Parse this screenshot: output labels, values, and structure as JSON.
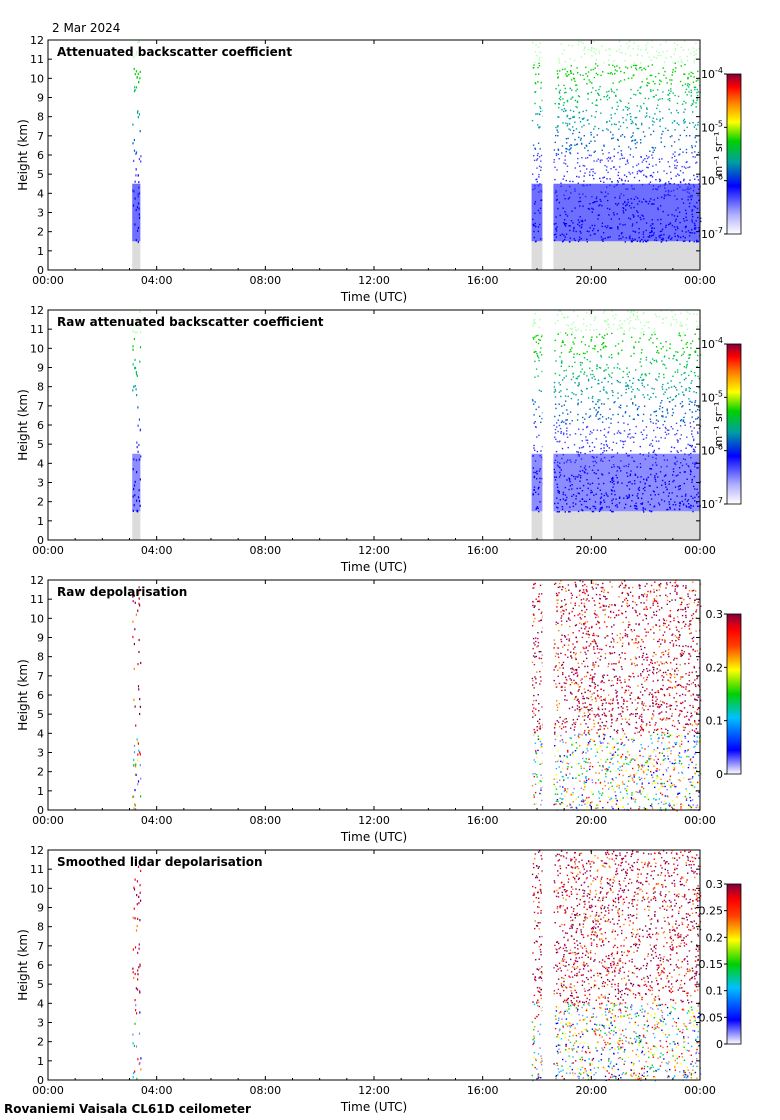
{
  "date_label": "2 Mar 2024",
  "footer": "Rovaniemi Vaisala CL61D ceilometer",
  "colors": {
    "nodata": "#dcdcdc",
    "axis": "#000000"
  },
  "chart_data": [
    {
      "type": "heatmap",
      "title": "Attenuated backscatter coefficient",
      "xlabel": "Time (UTC)",
      "ylabel": "Height (km)",
      "xlim": [
        0,
        24
      ],
      "ylim": [
        0,
        12
      ],
      "xticks": [
        "00:00",
        "04:00",
        "08:00",
        "12:00",
        "16:00",
        "20:00",
        "00:00"
      ],
      "yticks": [
        "0",
        "1",
        "2",
        "3",
        "4",
        "5",
        "6",
        "7",
        "8",
        "9",
        "10",
        "11",
        "12"
      ],
      "colorbar": {
        "scale": "log",
        "ticks": [
          {
            "base": "10",
            "exp": "-4"
          },
          {
            "base": "10",
            "exp": "-5"
          },
          {
            "base": "10",
            "exp": "-6"
          },
          {
            "base": "10",
            "exp": "-7"
          }
        ],
        "unit": "m⁻¹ sr⁻¹",
        "colormap": "viridis-like"
      },
      "data_segments": [
        [
          3.1,
          3.4
        ],
        [
          17.8,
          18.2
        ],
        [
          18.6,
          24
        ]
      ],
      "gap": [
        18.2,
        18.6
      ]
    },
    {
      "type": "heatmap",
      "title": "Raw attenuated backscatter coefficient",
      "xlabel": "Time (UTC)",
      "ylabel": "Height (km)",
      "xlim": [
        0,
        24
      ],
      "ylim": [
        0,
        12
      ],
      "xticks": [
        "00:00",
        "04:00",
        "08:00",
        "12:00",
        "16:00",
        "20:00",
        "00:00"
      ],
      "yticks": [
        "0",
        "1",
        "2",
        "3",
        "4",
        "5",
        "6",
        "7",
        "8",
        "9",
        "10",
        "11",
        "12"
      ],
      "colorbar": {
        "scale": "log",
        "ticks": [
          {
            "base": "10",
            "exp": "-4"
          },
          {
            "base": "10",
            "exp": "-5"
          },
          {
            "base": "10",
            "exp": "-6"
          },
          {
            "base": "10",
            "exp": "-7"
          }
        ],
        "unit": "m⁻¹ sr⁻¹",
        "colormap": "viridis-like"
      },
      "data_segments": [
        [
          3.1,
          3.4
        ],
        [
          17.8,
          18.2
        ],
        [
          18.6,
          24
        ]
      ],
      "gap": [
        18.2,
        18.6
      ]
    },
    {
      "type": "heatmap",
      "title": "Raw depolarisation",
      "xlabel": "Time (UTC)",
      "ylabel": "Height (km)",
      "xlim": [
        0,
        24
      ],
      "ylim": [
        0,
        12
      ],
      "xticks": [
        "00:00",
        "04:00",
        "08:00",
        "12:00",
        "16:00",
        "20:00",
        "00:00"
      ],
      "yticks": [
        "0",
        "1",
        "2",
        "3",
        "4",
        "5",
        "6",
        "7",
        "8",
        "9",
        "10",
        "11",
        "12"
      ],
      "colorbar": {
        "scale": "linear",
        "ticks": [
          "0.3",
          "0.2",
          "0.1",
          "0"
        ],
        "range": [
          0,
          0.3
        ],
        "colormap": "rainbow"
      },
      "data_segments": [
        [
          3.1,
          3.4
        ],
        [
          17.8,
          18.2
        ],
        [
          18.6,
          24
        ]
      ],
      "gap": [
        18.2,
        18.6
      ]
    },
    {
      "type": "heatmap",
      "title": "Smoothed lidar depolarisation",
      "xlabel": "Time (UTC)",
      "ylabel": "Height (km)",
      "xlim": [
        0,
        24
      ],
      "ylim": [
        0,
        12
      ],
      "xticks": [
        "00:00",
        "04:00",
        "08:00",
        "12:00",
        "16:00",
        "20:00",
        "00:00"
      ],
      "yticks": [
        "0",
        "1",
        "2",
        "3",
        "4",
        "5",
        "6",
        "7",
        "8",
        "9",
        "10",
        "11",
        "12"
      ],
      "colorbar": {
        "scale": "linear",
        "ticks": [
          "0.3",
          "0.25",
          "0.2",
          "0.15",
          "0.1",
          "0.05",
          "0"
        ],
        "range": [
          0,
          0.3
        ],
        "colormap": "rainbow"
      },
      "data_segments": [
        [
          3.1,
          3.4
        ],
        [
          17.8,
          18.2
        ],
        [
          18.6,
          24
        ]
      ],
      "gap": [
        18.2,
        18.6
      ]
    }
  ]
}
